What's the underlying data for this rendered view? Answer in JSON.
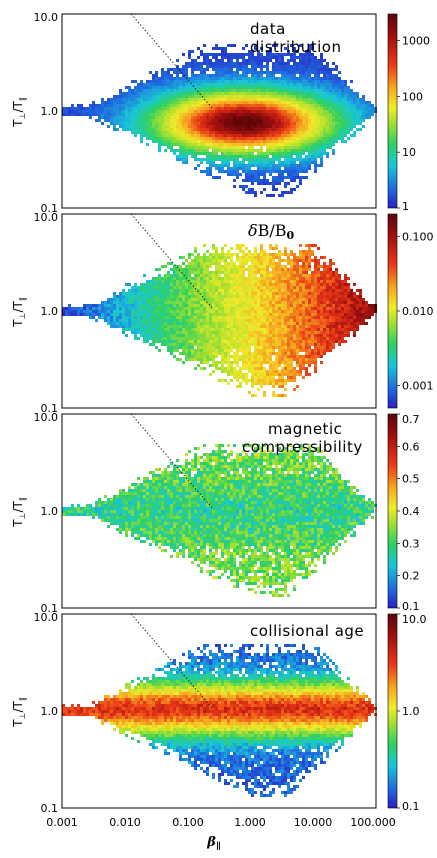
{
  "chart_data": [
    {
      "type": "heatmap",
      "panel": "data-distribution",
      "annotation": [
        "data",
        "distribution"
      ],
      "ylabel": "T⊥/T∥",
      "xscale": "log",
      "yscale": "log",
      "xlim": [
        0.001,
        100
      ],
      "ylim": [
        0.1,
        10
      ],
      "x_tick_labels": [
        "0.001",
        "0.010",
        "0.100",
        "1.000",
        "10.000",
        "100.000"
      ],
      "y_tick_labels": [
        "0.1",
        "1.0",
        "10.0"
      ],
      "colorbar": {
        "scale": "log",
        "range": [
          1,
          3000
        ],
        "tick_labels": [
          "1",
          "10",
          "100",
          "1000"
        ],
        "colormap": "rainbow"
      },
      "peak": {
        "x": 0.8,
        "y": 0.75,
        "value": 3000
      }
    },
    {
      "type": "heatmap",
      "panel": "delta-b-over-b0",
      "annotation_math": "δB/B0",
      "ylabel": "T⊥/T∥",
      "xscale": "log",
      "yscale": "log",
      "xlim": [
        0.001,
        100
      ],
      "ylim": [
        0.1,
        10
      ],
      "y_tick_labels": [
        "0.1",
        "1.0",
        "10.0"
      ],
      "colorbar": {
        "scale": "log",
        "range": [
          0.0005,
          0.2
        ],
        "tick_labels": [
          "0.001",
          "0.010",
          "0.100"
        ],
        "colormap": "rainbow"
      },
      "trend": "increases with beta_parallel"
    },
    {
      "type": "heatmap",
      "panel": "magnetic-compressibility",
      "annotation": [
        "magnetic",
        "compressibility"
      ],
      "ylabel": "T⊥/T∥",
      "xscale": "log",
      "yscale": "log",
      "xlim": [
        0.001,
        100
      ],
      "ylim": [
        0.1,
        10
      ],
      "y_tick_labels": [
        "0.1",
        "1.0",
        "10.0"
      ],
      "colorbar": {
        "scale": "linear",
        "range": [
          0.1,
          0.7
        ],
        "tick_labels": [
          "0.1",
          "0.2",
          "0.3",
          "0.4",
          "0.5",
          "0.6",
          "0.7"
        ],
        "colormap": "rainbow"
      },
      "trend": "enhanced near instability edges"
    },
    {
      "type": "heatmap",
      "panel": "collisional-age",
      "annotation": [
        "collisional age"
      ],
      "ylabel": "T⊥/T∥",
      "xscale": "log",
      "yscale": "log",
      "xlim": [
        0.001,
        100
      ],
      "ylim": [
        0.1,
        10
      ],
      "y_tick_labels": [
        "0.1",
        "1.0",
        "10.0"
      ],
      "colorbar": {
        "scale": "log",
        "range": [
          0.1,
          10
        ],
        "tick_labels": [
          "0.1",
          "1.0",
          "10.0"
        ],
        "colormap": "rainbow"
      },
      "trend": "high near isotropy, low in anisotropic wings"
    }
  ],
  "xlabel": "β∥",
  "colors": {
    "colormap": [
      "#2a1fbf",
      "#1f6be0",
      "#19c7d6",
      "#30d060",
      "#a8e030",
      "#f2ea2a",
      "#f5a520",
      "#ea3a17",
      "#a51010",
      "#5c0606"
    ]
  }
}
